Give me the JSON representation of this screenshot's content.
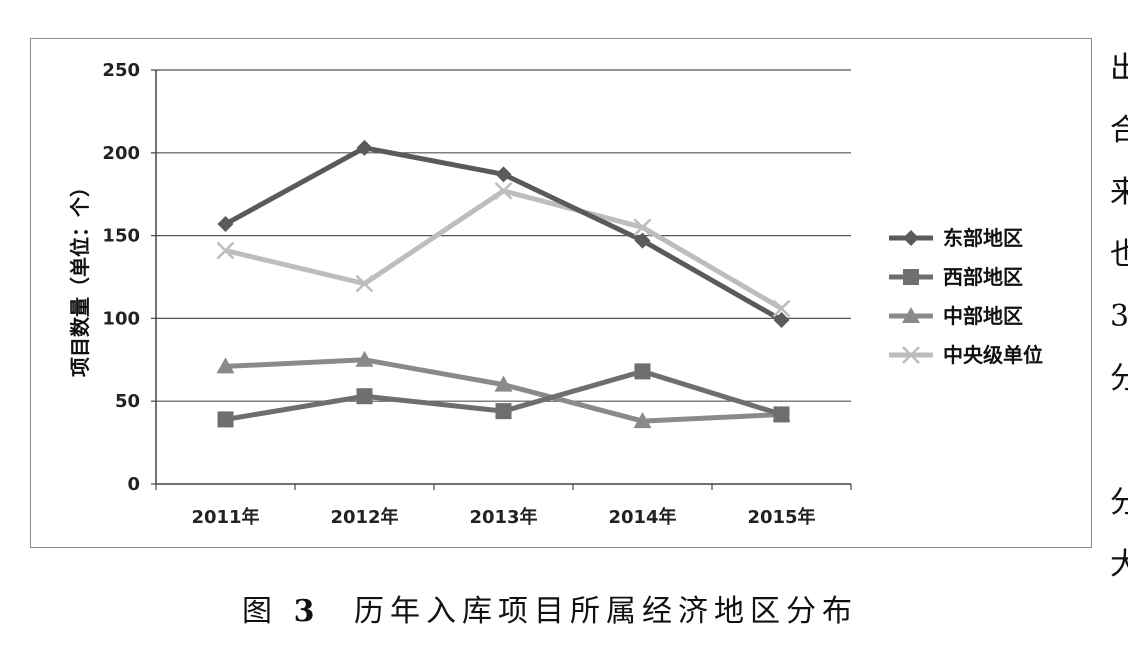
{
  "chart_data": {
    "type": "line",
    "title": "",
    "xlabel": "",
    "ylabel": "项目数量（单位：个）",
    "categories": [
      "2011年",
      "2012年",
      "2013年",
      "2014年",
      "2015年"
    ],
    "ylim": [
      0,
      250
    ],
    "yticks": [
      0,
      50,
      100,
      150,
      200,
      250
    ],
    "grid": "horizontal",
    "legend_position": "right",
    "series": [
      {
        "name": "东部地区",
        "marker": "diamond",
        "color": "#5a5a5a",
        "values": [
          157,
          203,
          187,
          147,
          99
        ]
      },
      {
        "name": "西部地区",
        "marker": "square",
        "color": "#6e6e6e",
        "values": [
          39,
          53,
          44,
          68,
          42
        ]
      },
      {
        "name": "中部地区",
        "marker": "triangle",
        "color": "#8a8a8a",
        "values": [
          71,
          75,
          60,
          38,
          42
        ]
      },
      {
        "name": "中央级单位",
        "marker": "x",
        "color": "#bdbdbd",
        "values": [
          141,
          121,
          177,
          155,
          106
        ]
      }
    ]
  },
  "caption": {
    "prefix": "图",
    "number": "3",
    "text": "历年入库项目所属经济地区分布"
  },
  "side_text": [
    "出",
    "合",
    "来",
    "也",
    "3",
    "分",
    "",
    "分",
    "大"
  ]
}
